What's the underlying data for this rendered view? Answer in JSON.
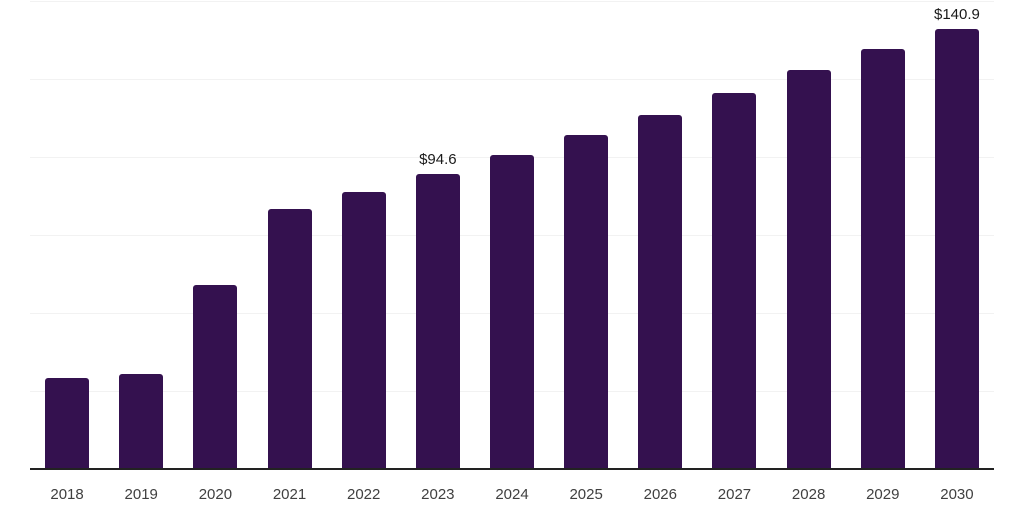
{
  "chart_data": {
    "type": "bar",
    "title": "",
    "xlabel": "",
    "ylabel": "",
    "categories": [
      "2018",
      "2019",
      "2020",
      "2021",
      "2022",
      "2023",
      "2024",
      "2025",
      "2026",
      "2027",
      "2028",
      "2029",
      "2030"
    ],
    "values": [
      29.1,
      30.4,
      59.1,
      83.4,
      88.8,
      94.6,
      100.7,
      107.0,
      113.4,
      120.5,
      127.8,
      134.5,
      140.9
    ],
    "data_labels": [
      "",
      "",
      "",
      "",
      "",
      "$94.6",
      "",
      "",
      "",
      "",
      "",
      "",
      "$140.9"
    ],
    "ylim": [
      0,
      150
    ],
    "gridline_step": 25,
    "grid": true,
    "legend": "none",
    "colors": {
      "bar": "#34114f",
      "data_label": "#1a1a1a",
      "axis_label": "#404040",
      "gridline": "#f2f2f2",
      "axis_line": "#222222",
      "background": "#ffffff"
    }
  }
}
